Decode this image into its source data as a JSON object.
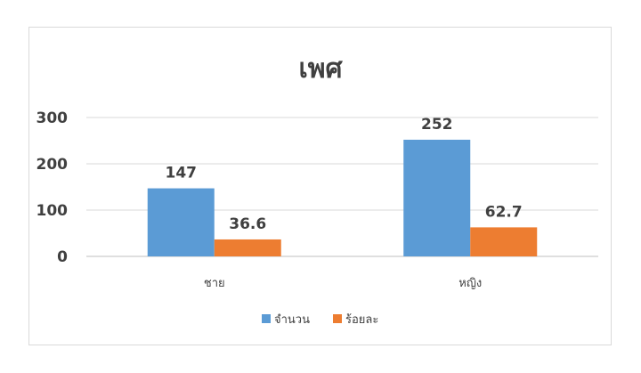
{
  "chart_data": {
    "type": "bar",
    "title": "เพศ",
    "categories": [
      "ชาย",
      "หญิง"
    ],
    "series": [
      {
        "name": "จำนวน",
        "values": [
          147,
          252
        ],
        "color": "#5b9bd5"
      },
      {
        "name": "ร้อยละ",
        "values": [
          36.6,
          62.7
        ],
        "color": "#ed7d31"
      }
    ],
    "ylim": [
      0,
      300
    ],
    "yticks": [
      0,
      100,
      200,
      300
    ],
    "grid": true,
    "legend": "bottom",
    "data_labels": true
  }
}
